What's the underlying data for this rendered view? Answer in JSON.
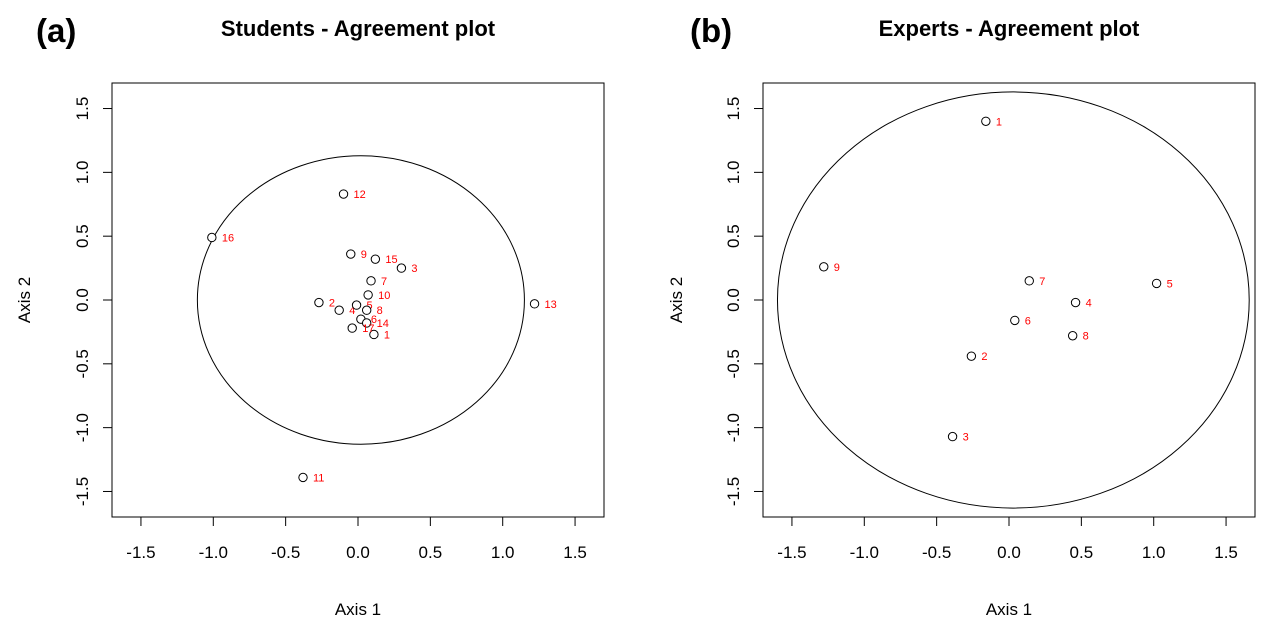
{
  "chart_data": [
    {
      "type": "scatter",
      "panel_label": "(a)",
      "title": "Students - Agreement plot",
      "xlabel": "Axis 1",
      "ylabel": "Axis 2",
      "xlim": [
        -1.7,
        1.7
      ],
      "ylim": [
        -1.7,
        1.7
      ],
      "xticks": [
        "-1.5",
        "-1.0",
        "-0.5",
        "0.0",
        "0.5",
        "1.0",
        "1.5"
      ],
      "yticks": [
        "-1.5",
        "-1.0",
        "-0.5",
        "0.0",
        "0.5",
        "1.0",
        "1.5"
      ],
      "grid": false,
      "circle": {
        "cx": 0.02,
        "cy": 0.0,
        "r": 1.13
      },
      "points": [
        {
          "label": "1",
          "x": 0.11,
          "y": -0.27
        },
        {
          "label": "2",
          "x": -0.27,
          "y": -0.02
        },
        {
          "label": "3",
          "x": 0.3,
          "y": 0.25
        },
        {
          "label": "4",
          "x": -0.13,
          "y": -0.08
        },
        {
          "label": "5",
          "x": -0.01,
          "y": -0.04
        },
        {
          "label": "6",
          "x": 0.02,
          "y": -0.15
        },
        {
          "label": "7",
          "x": 0.09,
          "y": 0.15
        },
        {
          "label": "8",
          "x": 0.06,
          "y": -0.08
        },
        {
          "label": "9",
          "x": -0.05,
          "y": 0.36
        },
        {
          "label": "10",
          "x": 0.07,
          "y": 0.04
        },
        {
          "label": "11",
          "x": -0.38,
          "y": -1.39
        },
        {
          "label": "12",
          "x": -0.1,
          "y": 0.83
        },
        {
          "label": "13",
          "x": 1.22,
          "y": -0.03
        },
        {
          "label": "14",
          "x": 0.06,
          "y": -0.18
        },
        {
          "label": "15",
          "x": 0.12,
          "y": 0.32
        },
        {
          "label": "16",
          "x": -1.01,
          "y": 0.49
        },
        {
          "label": "17",
          "x": -0.04,
          "y": -0.22
        }
      ]
    },
    {
      "type": "scatter",
      "panel_label": "(b)",
      "title": "Experts - Agreement plot",
      "xlabel": "Axis 1",
      "ylabel": "Axis 2",
      "xlim": [
        -1.7,
        1.7
      ],
      "ylim": [
        -1.7,
        1.7
      ],
      "xticks": [
        "-1.5",
        "-1.0",
        "-0.5",
        "0.0",
        "0.5",
        "1.0",
        "1.5"
      ],
      "yticks": [
        "-1.5",
        "-1.0",
        "-0.5",
        "0.0",
        "0.5",
        "1.0",
        "1.5"
      ],
      "grid": false,
      "circle": {
        "cx": 0.03,
        "cy": 0.0,
        "r": 1.63
      },
      "points": [
        {
          "label": "1",
          "x": -0.16,
          "y": 1.4
        },
        {
          "label": "2",
          "x": -0.26,
          "y": -0.44
        },
        {
          "label": "3",
          "x": -0.39,
          "y": -1.07
        },
        {
          "label": "4",
          "x": 0.46,
          "y": -0.02
        },
        {
          "label": "5",
          "x": 1.02,
          "y": 0.13
        },
        {
          "label": "6",
          "x": 0.04,
          "y": -0.16
        },
        {
          "label": "7",
          "x": 0.14,
          "y": 0.15
        },
        {
          "label": "8",
          "x": 0.44,
          "y": -0.28
        },
        {
          "label": "9",
          "x": -1.28,
          "y": 0.26
        }
      ]
    }
  ]
}
